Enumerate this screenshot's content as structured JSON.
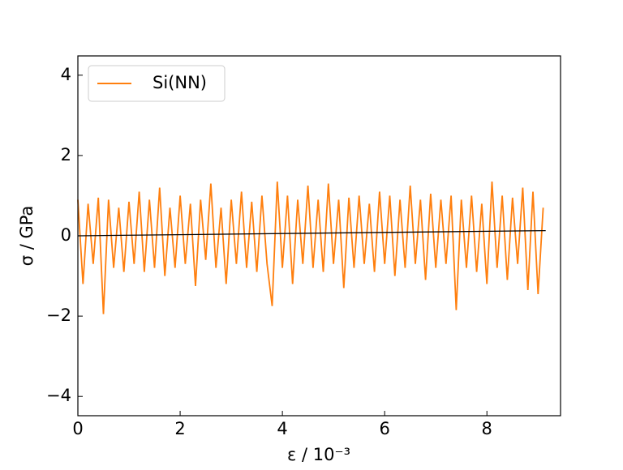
{
  "chart_data": {
    "type": "line",
    "xlabel": "ε / 10⁻³",
    "ylabel": "σ / GPa",
    "xlim": [
      0,
      9.44
    ],
    "ylim": [
      -4.48,
      4.48
    ],
    "xticks": [
      0,
      2,
      4,
      6,
      8
    ],
    "yticks": [
      {
        "value": -4,
        "label": "−4"
      },
      {
        "value": -2,
        "label": "−2"
      },
      0,
      2,
      4
    ],
    "legend": "upper left",
    "series": [
      {
        "name": "Si(NN)",
        "color": "#ff7f0e",
        "x": [
          0.0,
          0.1,
          0.2,
          0.3,
          0.4,
          0.5,
          0.6,
          0.7,
          0.8,
          0.9,
          1.0,
          1.1,
          1.2,
          1.3,
          1.4,
          1.5,
          1.6,
          1.7,
          1.8,
          1.9,
          2.0,
          2.1,
          2.2,
          2.3,
          2.4,
          2.5,
          2.6,
          2.7,
          2.8,
          2.9,
          3.0,
          3.1,
          3.2,
          3.3,
          3.4,
          3.5,
          3.6,
          3.7,
          3.8,
          3.9,
          4.0,
          4.1,
          4.2,
          4.3,
          4.4,
          4.5,
          4.6,
          4.7,
          4.8,
          4.9,
          5.0,
          5.1,
          5.2,
          5.3,
          5.4,
          5.5,
          5.6,
          5.7,
          5.8,
          5.9,
          6.0,
          6.1,
          6.2,
          6.3,
          6.4,
          6.5,
          6.6,
          6.7,
          6.8,
          6.9,
          7.0,
          7.1,
          7.2,
          7.3,
          7.4,
          7.5,
          7.6,
          7.7,
          7.8,
          7.9,
          8.0,
          8.1,
          8.2,
          8.3,
          8.4,
          8.5,
          8.6,
          8.7,
          8.8,
          8.9,
          9.0,
          9.1
        ],
        "values": [
          0.9,
          -1.2,
          0.8,
          -0.7,
          0.95,
          -1.95,
          0.9,
          -0.8,
          0.7,
          -0.9,
          0.85,
          -0.7,
          1.1,
          -0.9,
          0.9,
          -0.8,
          1.2,
          -1.0,
          0.7,
          -0.8,
          1.0,
          -0.7,
          0.8,
          -1.25,
          0.9,
          -0.6,
          1.3,
          -0.8,
          0.7,
          -1.2,
          0.9,
          -0.7,
          1.1,
          -0.8,
          0.85,
          -0.9,
          1.0,
          -0.7,
          -1.75,
          1.35,
          -0.8,
          1.0,
          -1.2,
          0.9,
          -0.7,
          1.25,
          -0.8,
          0.9,
          -0.9,
          1.3,
          -0.7,
          0.9,
          -1.3,
          0.95,
          -0.8,
          1.0,
          -0.7,
          0.8,
          -0.9,
          1.1,
          -0.7,
          1.0,
          -1.0,
          0.9,
          -0.8,
          1.25,
          -0.7,
          0.9,
          -1.1,
          1.05,
          -0.8,
          0.9,
          -0.7,
          1.0,
          -1.85,
          0.9,
          -0.8,
          1.0,
          -0.9,
          0.8,
          -1.2,
          1.35,
          -0.8,
          1.0,
          -1.1,
          0.95,
          -0.7,
          1.2,
          -1.35,
          1.1,
          -1.45,
          0.7
        ]
      },
      {
        "color": "#000000",
        "x": [
          0,
          9.15
        ],
        "values": [
          0,
          0.13
        ]
      }
    ]
  }
}
